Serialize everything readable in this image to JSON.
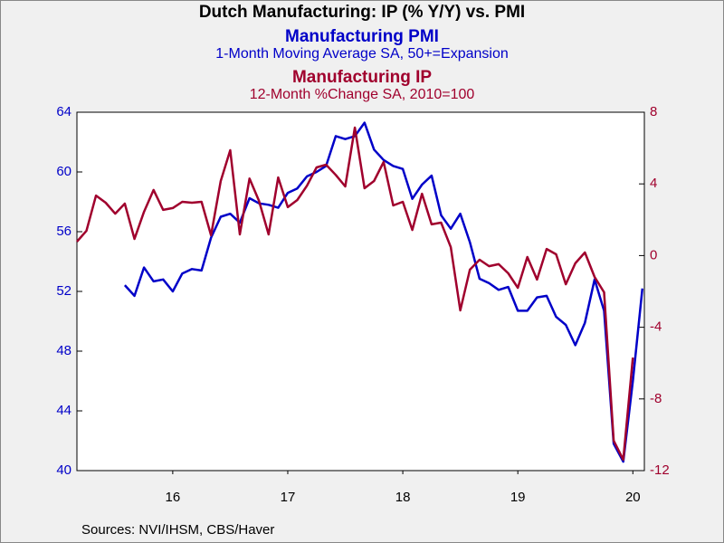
{
  "chart_data": {
    "type": "line",
    "title": "Dutch Manufacturing: IP (% Y/Y) vs. PMI",
    "source": "Sources:  NVI/IHSM, CBS/Haver",
    "x": [
      2015.667,
      2015.75,
      2015.833,
      2015.917,
      2016,
      2016.083,
      2016.167,
      2016.25,
      2016.333,
      2016.417,
      2016.5,
      2016.583,
      2016.667,
      2016.75,
      2016.833,
      2016.917,
      2017,
      2017.083,
      2017.167,
      2017.25,
      2017.333,
      2017.417,
      2017.5,
      2017.583,
      2017.667,
      2017.75,
      2017.833,
      2017.917,
      2018,
      2018.083,
      2018.167,
      2018.25,
      2018.333,
      2018.417,
      2018.5,
      2018.583,
      2018.667,
      2018.75,
      2018.833,
      2018.917,
      2019,
      2019.083,
      2019.167,
      2019.25,
      2019.333,
      2019.417,
      2019.5,
      2019.583,
      2019.667,
      2019.75,
      2019.833,
      2019.917,
      2020,
      2020.083,
      2020.167,
      2020.25,
      2020.333,
      2020.417,
      2020.5,
      2020.583
    ],
    "xlim": [
      2015.667,
      2020.6
    ],
    "xticks": [
      {
        "value": 2016.5,
        "label": "16"
      },
      {
        "value": 2017.5,
        "label": "17"
      },
      {
        "value": 2018.5,
        "label": "18"
      },
      {
        "value": 2019.5,
        "label": "19"
      },
      {
        "value": 2020.5,
        "label": "20"
      }
    ],
    "ylim": [
      40,
      64
    ],
    "yticks": [
      40,
      44,
      48,
      52,
      56,
      60,
      64
    ],
    "y2lim": [
      -12,
      8
    ],
    "y2ticks": [
      -12,
      -8,
      -4,
      0,
      4,
      8
    ],
    "series": [
      {
        "name": "Manufacturing PMI",
        "description": "1-Month Moving Average     SA, 50+=Expansion",
        "color": "#0000c8",
        "axis": "y",
        "values": [
          null,
          null,
          null,
          null,
          null,
          52.42,
          51.7,
          53.6,
          52.67,
          52.8,
          52.0,
          53.2,
          53.5,
          53.4,
          55.6,
          57.0,
          57.2,
          56.6,
          58.24,
          57.9,
          57.8,
          57.6,
          58.6,
          58.9,
          59.7,
          60.0,
          60.4,
          62.4,
          62.2,
          62.4,
          63.3,
          61.5,
          60.8,
          60.4,
          60.2,
          58.2,
          59.15,
          59.75,
          57.1,
          56.2,
          57.2,
          55.3,
          52.85,
          52.55,
          52.1,
          52.3,
          50.7,
          50.7,
          51.6,
          51.7,
          50.3,
          49.76,
          48.4,
          49.9,
          52.8,
          50.7,
          41.8,
          40.6,
          46.0,
          52.2
        ]
      },
      {
        "name": "Manufacturing IP",
        "description": "12-Month %Change     SA, 2010=100",
        "color": "#a0002d",
        "axis": "y2",
        "values": [
          0.78,
          1.38,
          3.35,
          2.95,
          2.34,
          2.9,
          0.93,
          2.44,
          3.66,
          2.55,
          2.65,
          3.0,
          2.95,
          3.0,
          1.13,
          4.16,
          5.88,
          1.18,
          4.3,
          3.05,
          1.18,
          4.36,
          2.7,
          3.1,
          3.9,
          4.92,
          5.07,
          4.5,
          3.86,
          7.14,
          3.76,
          4.16,
          5.22,
          2.8,
          3.0,
          1.43,
          3.45,
          1.74,
          1.84,
          0.47,
          -3.06,
          -0.79,
          -0.23,
          -0.59,
          -0.48,
          -0.99,
          -1.8,
          -0.08,
          -1.34,
          0.37,
          0.07,
          -1.6,
          -0.43,
          0.17,
          -1.19,
          -2.05,
          -10.33,
          -11.39,
          -5.69,
          null
        ]
      }
    ]
  }
}
